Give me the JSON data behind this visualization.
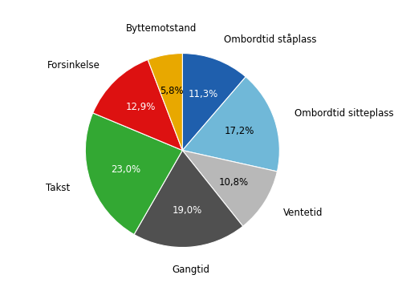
{
  "labels": [
    "Ombordtid ståplass",
    "Ombordtid sitteplass",
    "Ventetid",
    "Gangtid",
    "Takst",
    "Forsinkelse",
    "Byttemotstand"
  ],
  "values": [
    11.3,
    17.2,
    10.8,
    19.0,
    23.0,
    12.9,
    5.8
  ],
  "colors": [
    "#1F5FAD",
    "#70B8D8",
    "#B8B8B8",
    "#505050",
    "#33A833",
    "#DD1111",
    "#E8A800"
  ],
  "pct_labels": [
    "11,3%",
    "17,2%",
    "10,8%",
    "19,0%",
    "23,0%",
    "12,9%",
    "5,8%"
  ],
  "pct_colors": [
    "white",
    "black",
    "black",
    "white",
    "white",
    "white",
    "black"
  ],
  "outer_labels": [
    "Ombordtid ståplass",
    "Ombordtid sitteplass",
    "Ventetid",
    "Gangtid",
    "Takst",
    "Forsinkelse",
    "Byttemotstand"
  ],
  "startangle": 90,
  "figsize": [
    4.91,
    3.63
  ],
  "dpi": 100
}
